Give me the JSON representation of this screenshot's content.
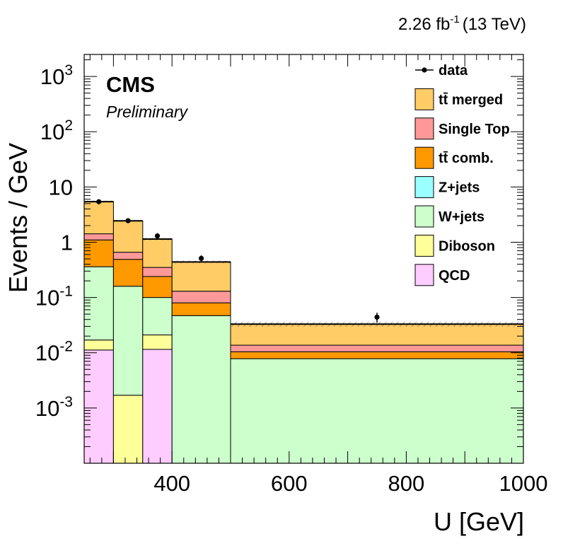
{
  "header": {
    "lumi_value": "2.26 fb",
    "lumi_exp": "-1",
    "lumi_energy": "(13 TeV)"
  },
  "labels": {
    "cms": "CMS",
    "preliminary": "Preliminary"
  },
  "chart_data": {
    "type": "stacked-histogram",
    "xlabel": "U [GeV]",
    "ylabel": "Events / GeV",
    "xlim": [
      250,
      1000
    ],
    "ylim": [
      0.0001,
      2500
    ],
    "yscale": "log",
    "grid": false,
    "legend_position": "top-right",
    "x_ticks": [
      {
        "value": 400,
        "label": "400"
      },
      {
        "value": 600,
        "label": "600"
      },
      {
        "value": 800,
        "label": "800"
      },
      {
        "value": 1000,
        "label": "1000"
      }
    ],
    "y_ticks": [
      {
        "value": 0.001,
        "base": "10",
        "exp": "-3"
      },
      {
        "value": 0.01,
        "base": "10",
        "exp": "-2"
      },
      {
        "value": 0.1,
        "base": "10",
        "exp": "-1"
      },
      {
        "value": 1,
        "base": "1",
        "exp": ""
      },
      {
        "value": 10,
        "base": "10",
        "exp": ""
      },
      {
        "value": 100,
        "base": "10",
        "exp": "2"
      },
      {
        "value": 1000,
        "base": "10",
        "exp": "3"
      }
    ],
    "bin_edges": [
      250,
      300,
      350,
      400,
      500,
      1000
    ],
    "stack_order": [
      "QCD",
      "Diboson",
      "Z+jets",
      "W+jets",
      "tt comb.",
      "Single Top",
      "tt merged"
    ],
    "stack": [
      {
        "name": "QCD",
        "color": "#ffccff",
        "values": [
          0.0112,
          0.0,
          0.0115,
          0.0,
          0.0
        ]
      },
      {
        "name": "Diboson",
        "color": "#ffff99",
        "values": [
          0.0058,
          0.0017,
          0.0095,
          0.0,
          0.0
        ]
      },
      {
        "name": "Z+jets",
        "color": "#99ffff",
        "values": [
          0.0,
          0.0,
          0.0,
          0.0,
          0.0
        ]
      },
      {
        "name": "W+jets",
        "color": "#ccffcc",
        "values": [
          0.343,
          0.158,
          0.079,
          0.047,
          0.0078
        ]
      },
      {
        "name": "tt comb.",
        "color": "#ff9900",
        "values": [
          0.74,
          0.33,
          0.14,
          0.033,
          0.0026
        ]
      },
      {
        "name": "Single Top",
        "color": "#ff9999",
        "values": [
          0.32,
          0.17,
          0.11,
          0.05,
          0.0033
        ]
      },
      {
        "name": "tt merged",
        "color": "#ffcc66",
        "values": [
          4.0,
          1.78,
          0.79,
          0.31,
          0.0193
        ]
      }
    ],
    "totals": [
      5.42,
      2.44,
      1.14,
      0.44,
      0.033
    ],
    "uncertainty": [
      0.25,
      0.1,
      0.06,
      0.025,
      0.0035
    ],
    "data": {
      "name": "data",
      "x": [
        275,
        325,
        375,
        450,
        750
      ],
      "y": [
        5.4,
        2.45,
        1.3,
        0.51,
        0.044
      ],
      "yerr": [
        0.35,
        0.22,
        0.16,
        0.07,
        0.009
      ],
      "xerr": [
        25,
        25,
        25,
        50,
        250
      ]
    },
    "legend": [
      {
        "key": "data",
        "style": "marker",
        "label": "data"
      },
      {
        "key": "tt merged",
        "style": "box",
        "color": "#ffcc66",
        "label": "tt̄ merged"
      },
      {
        "key": "Single Top",
        "style": "box",
        "color": "#ff9999",
        "label": "Single Top"
      },
      {
        "key": "tt comb.",
        "style": "box",
        "color": "#ff9900",
        "label": "tt̄ comb."
      },
      {
        "key": "Z+jets",
        "style": "box",
        "color": "#99ffff",
        "label": "Z+jets"
      },
      {
        "key": "W+jets",
        "style": "box",
        "color": "#ccffcc",
        "label": "W+jets"
      },
      {
        "key": "Diboson",
        "style": "box",
        "color": "#ffff99",
        "label": "Diboson"
      },
      {
        "key": "QCD",
        "style": "box",
        "color": "#ffccff",
        "label": "QCD"
      }
    ]
  }
}
